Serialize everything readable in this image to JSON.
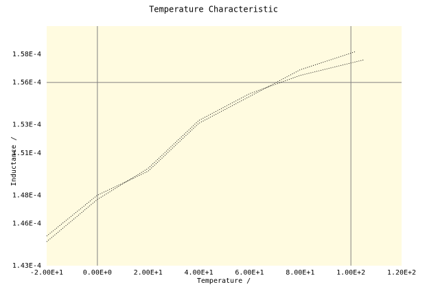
{
  "chart_data": {
    "type": "line",
    "title": "Temperature Characteristic",
    "x_label": "Temperature /",
    "y_label": "Inductance /",
    "series": [
      {
        "x": [
          -20,
          0,
          20,
          40,
          60,
          80,
          102
        ],
        "values": [
          0.0001451,
          0.000148,
          0.0001497,
          0.0001531,
          0.000155,
          0.0001569,
          0.0001582
        ],
        "color": "#000000"
      },
      {
        "x": [
          -20,
          0,
          20,
          40,
          60,
          80,
          105
        ],
        "values": [
          0.0001447,
          0.0001477,
          0.0001499,
          0.0001533,
          0.0001552,
          0.0001565,
          0.0001576
        ],
        "color": "#000000"
      }
    ],
    "xlim": [
      -20,
      120
    ],
    "ylim": [
      0.000143,
      0.00016
    ],
    "xticks": [
      {
        "value": -20,
        "label": "-2.00E+1"
      },
      {
        "value": 0,
        "label": "0.00E+0"
      },
      {
        "value": 20,
        "label": "2.00E+1"
      },
      {
        "value": 40,
        "label": "4.00E+1"
      },
      {
        "value": 60,
        "label": "6.00E+1"
      },
      {
        "value": 80,
        "label": "8.00E+1"
      },
      {
        "value": 100,
        "label": "1.00E+2"
      },
      {
        "value": 120,
        "label": "1.20E+2"
      }
    ],
    "yticks": [
      {
        "value": 0.000143,
        "label": "1.43E-4"
      },
      {
        "value": 0.000146,
        "label": "1.46E-4"
      },
      {
        "value": 0.000148,
        "label": "1.48E-4"
      },
      {
        "value": 0.000151,
        "label": "1.51E-4"
      },
      {
        "value": 0.000153,
        "label": "1.53E-4"
      },
      {
        "value": 0.000156,
        "label": "1.56E-4"
      },
      {
        "value": 0.000158,
        "label": "1.58E-4"
      }
    ],
    "xgrid": [
      0,
      100
    ],
    "ygrid": [
      0.000156
    ],
    "plot_background": "#fffbe0"
  }
}
